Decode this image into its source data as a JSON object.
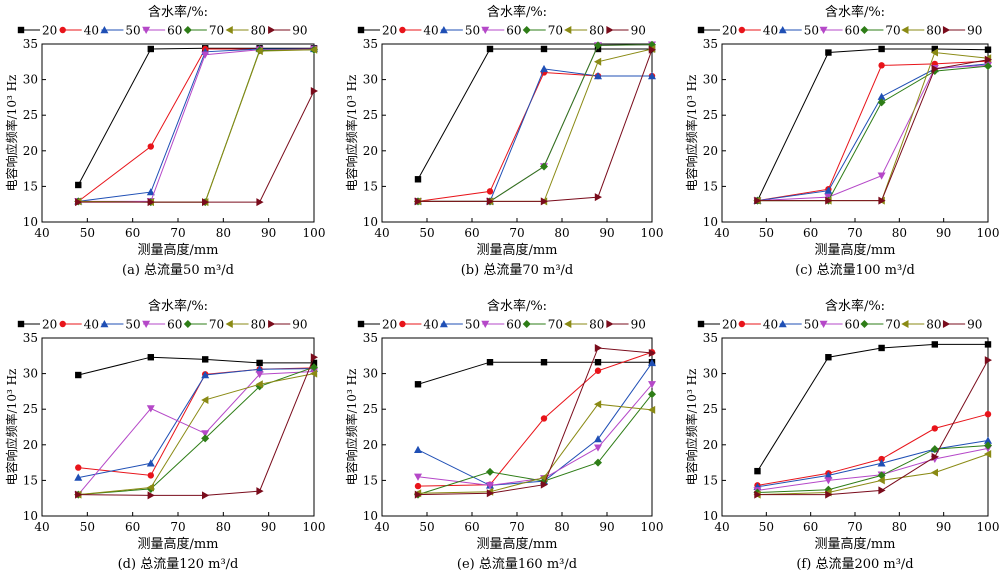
{
  "chart_data": [
    {
      "type": "line",
      "caption": "(a) 总流量50 m³/d",
      "xlabel": "测量高度/mm",
      "ylabel": "电容响应频率/10³ Hz",
      "legend_title": "含水率/%:",
      "xlim": [
        40,
        100
      ],
      "ylim": [
        10,
        35
      ],
      "xticks": [
        40,
        50,
        60,
        70,
        80,
        90,
        100
      ],
      "yticks": [
        10,
        15,
        20,
        25,
        30,
        35
      ],
      "x": [
        48,
        64,
        76,
        88,
        100
      ],
      "series": [
        {
          "name": "20",
          "values": [
            15.2,
            34.3,
            34.4,
            34.4,
            34.4
          ]
        },
        {
          "name": "40",
          "values": [
            12.9,
            20.6,
            34.3,
            34.3,
            34.3
          ]
        },
        {
          "name": "50",
          "values": [
            12.9,
            14.2,
            33.9,
            34.3,
            34.3
          ]
        },
        {
          "name": "60",
          "values": [
            12.9,
            12.9,
            33.5,
            34.2,
            34.3
          ]
        },
        {
          "name": "70",
          "values": [
            12.9,
            12.8,
            12.8,
            34.1,
            34.2
          ]
        },
        {
          "name": "80",
          "values": [
            12.9,
            12.8,
            12.8,
            34.0,
            34.2
          ]
        },
        {
          "name": "90",
          "values": [
            12.8,
            12.8,
            12.8,
            12.8,
            28.4
          ]
        }
      ]
    },
    {
      "type": "line",
      "caption": "(b) 总流量70 m³/d",
      "xlabel": "测量高度/mm",
      "ylabel": "电容响应频率/10³ Hz",
      "legend_title": "含水率/%:",
      "xlim": [
        40,
        100
      ],
      "ylim": [
        10,
        35
      ],
      "xticks": [
        40,
        50,
        60,
        70,
        80,
        90,
        100
      ],
      "yticks": [
        10,
        15,
        20,
        25,
        30,
        35
      ],
      "x": [
        48,
        64,
        76,
        88,
        100
      ],
      "series": [
        {
          "name": "20",
          "values": [
            16.0,
            34.3,
            34.3,
            34.3,
            34.3
          ]
        },
        {
          "name": "40",
          "values": [
            12.9,
            14.3,
            31.0,
            30.5,
            30.5
          ]
        },
        {
          "name": "50",
          "values": [
            12.9,
            12.9,
            31.5,
            30.5,
            30.5
          ]
        },
        {
          "name": "60",
          "values": [
            12.9,
            12.9,
            17.8,
            34.8,
            34.9
          ]
        },
        {
          "name": "70",
          "values": [
            12.9,
            12.9,
            17.8,
            34.8,
            34.9
          ]
        },
        {
          "name": "80",
          "values": [
            12.9,
            12.9,
            12.9,
            32.5,
            34.3
          ]
        },
        {
          "name": "90",
          "values": [
            12.9,
            12.9,
            12.9,
            13.5,
            34.2
          ]
        }
      ]
    },
    {
      "type": "line",
      "caption": "(c) 总流量100 m³/d",
      "xlabel": "测量高度/mm",
      "ylabel": "电容响应频率/10³ Hz",
      "legend_title": "含水率/%:",
      "xlim": [
        40,
        100
      ],
      "ylim": [
        10,
        35
      ],
      "xticks": [
        40,
        50,
        60,
        70,
        80,
        90,
        100
      ],
      "yticks": [
        10,
        15,
        20,
        25,
        30,
        35
      ],
      "x": [
        48,
        64,
        76,
        88,
        100
      ],
      "series": [
        {
          "name": "20",
          "values": [
            13.0,
            33.8,
            34.3,
            34.3,
            34.2
          ]
        },
        {
          "name": "40",
          "values": [
            13.0,
            14.6,
            32.0,
            32.2,
            32.6
          ]
        },
        {
          "name": "50",
          "values": [
            13.0,
            14.4,
            27.6,
            31.5,
            32.2
          ]
        },
        {
          "name": "60",
          "values": [
            13.0,
            13.5,
            16.5,
            31.6,
            32.0
          ]
        },
        {
          "name": "70",
          "values": [
            13.0,
            13.0,
            26.8,
            31.2,
            31.9
          ]
        },
        {
          "name": "80",
          "values": [
            13.0,
            13.0,
            13.0,
            33.8,
            33.0
          ]
        },
        {
          "name": "90",
          "values": [
            13.0,
            13.0,
            13.0,
            31.5,
            32.8
          ]
        }
      ]
    },
    {
      "type": "line",
      "caption": "(d) 总流量120 m³/d",
      "xlabel": "测量高度/mm",
      "ylabel": "电容响应频率/10³ Hz",
      "legend_title": "含水率/%:",
      "xlim": [
        40,
        100
      ],
      "ylim": [
        10,
        35
      ],
      "xticks": [
        40,
        50,
        60,
        70,
        80,
        90,
        100
      ],
      "yticks": [
        10,
        15,
        20,
        25,
        30,
        35
      ],
      "x": [
        48,
        64,
        76,
        88,
        100
      ],
      "series": [
        {
          "name": "20",
          "values": [
            29.8,
            32.3,
            32.0,
            31.5,
            31.5
          ]
        },
        {
          "name": "40",
          "values": [
            16.8,
            15.7,
            29.9,
            30.6,
            30.8
          ]
        },
        {
          "name": "50",
          "values": [
            15.4,
            17.4,
            29.8,
            30.6,
            30.7
          ]
        },
        {
          "name": "60",
          "values": [
            13.0,
            25.1,
            21.6,
            29.9,
            30.3
          ]
        },
        {
          "name": "70",
          "values": [
            13.0,
            13.8,
            20.9,
            28.2,
            30.9
          ]
        },
        {
          "name": "80",
          "values": [
            13.0,
            14.0,
            26.3,
            28.5,
            30.0
          ]
        },
        {
          "name": "90",
          "values": [
            13.0,
            12.9,
            12.9,
            13.5,
            32.3
          ]
        }
      ]
    },
    {
      "type": "line",
      "caption": "(e) 总流量160 m³/d",
      "xlabel": "测量高度/mm",
      "ylabel": "电容响应频率/10³ Hz",
      "legend_title": "含水率/%:",
      "xlim": [
        40,
        100
      ],
      "ylim": [
        10,
        35
      ],
      "xticks": [
        40,
        50,
        60,
        70,
        80,
        90,
        100
      ],
      "yticks": [
        10,
        15,
        20,
        25,
        30,
        35
      ],
      "x": [
        48,
        64,
        76,
        88,
        100
      ],
      "series": [
        {
          "name": "20",
          "values": [
            28.5,
            31.6,
            31.6,
            31.6,
            31.6
          ]
        },
        {
          "name": "40",
          "values": [
            14.2,
            14.4,
            23.7,
            30.4,
            33.0
          ]
        },
        {
          "name": "50",
          "values": [
            19.3,
            14.3,
            14.9,
            20.8,
            31.5
          ]
        },
        {
          "name": "60",
          "values": [
            15.5,
            14.3,
            15.3,
            19.6,
            28.5
          ]
        },
        {
          "name": "70",
          "values": [
            13.0,
            16.2,
            14.9,
            17.5,
            27.1
          ]
        },
        {
          "name": "80",
          "values": [
            13.2,
            13.4,
            15.4,
            25.7,
            24.9
          ]
        },
        {
          "name": "90",
          "values": [
            13.0,
            13.2,
            14.4,
            33.6,
            32.9
          ]
        }
      ]
    },
    {
      "type": "line",
      "caption": "(f) 总流量200 m³/d",
      "xlabel": "测量高度/mm",
      "ylabel": "电容响应频率/10³ Hz",
      "legend_title": "含水率/%:",
      "xlim": [
        40,
        100
      ],
      "ylim": [
        10,
        35
      ],
      "xticks": [
        40,
        50,
        60,
        70,
        80,
        90,
        100
      ],
      "yticks": [
        10,
        15,
        20,
        25,
        30,
        35
      ],
      "x": [
        48,
        64,
        76,
        88,
        100
      ],
      "series": [
        {
          "name": "20",
          "values": [
            16.3,
            32.3,
            33.6,
            34.1,
            34.1
          ]
        },
        {
          "name": "40",
          "values": [
            14.3,
            16.0,
            18.0,
            22.3,
            24.3
          ]
        },
        {
          "name": "50",
          "values": [
            14.1,
            15.7,
            17.4,
            19.4,
            20.6
          ]
        },
        {
          "name": "60",
          "values": [
            13.6,
            15.0,
            15.8,
            18.0,
            19.5
          ]
        },
        {
          "name": "70",
          "values": [
            13.3,
            13.7,
            15.7,
            19.4,
            19.9
          ]
        },
        {
          "name": "80",
          "values": [
            13.0,
            13.3,
            15.0,
            16.1,
            18.7
          ]
        },
        {
          "name": "90",
          "values": [
            13.0,
            13.0,
            13.6,
            18.3,
            31.9
          ]
        }
      ]
    }
  ],
  "series_style": [
    {
      "name": "20",
      "color": "#000000",
      "marker": "square"
    },
    {
      "name": "40",
      "color": "#e8141a",
      "marker": "circle"
    },
    {
      "name": "50",
      "color": "#1f4fb5",
      "marker": "triangle-up"
    },
    {
      "name": "60",
      "color": "#b548c8",
      "marker": "triangle-down"
    },
    {
      "name": "70",
      "color": "#2e7d17",
      "marker": "diamond"
    },
    {
      "name": "80",
      "color": "#8a8a14",
      "marker": "triangle-left"
    },
    {
      "name": "90",
      "color": "#7a0c1c",
      "marker": "triangle-right"
    }
  ]
}
